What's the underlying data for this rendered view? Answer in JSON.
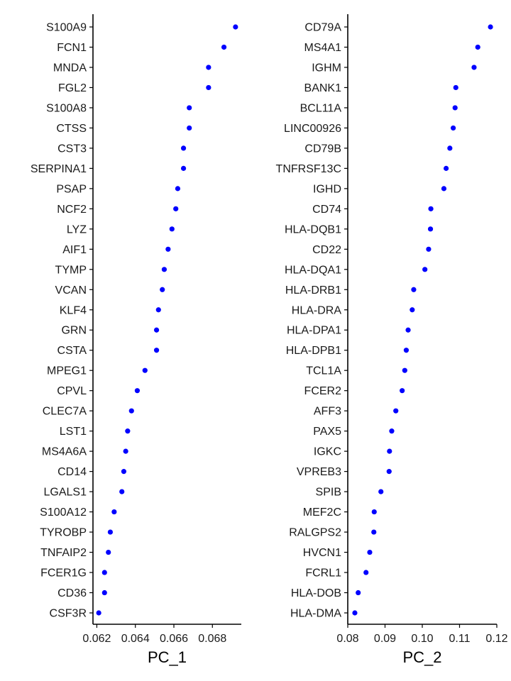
{
  "chart_data": [
    {
      "type": "scatter",
      "xlabel": "PC_1",
      "ylabel": "",
      "xlim": [
        0.0618,
        0.0695
      ],
      "xticks": [
        0.062,
        0.064,
        0.066,
        0.068
      ],
      "xtick_labels": [
        "0.062",
        "0.064",
        "0.066",
        "0.068"
      ],
      "point_color": "#0000ff",
      "grid": false,
      "genes": [
        "S100A9",
        "FCN1",
        "MNDA",
        "FGL2",
        "S100A8",
        "CTSS",
        "CST3",
        "SERPINA1",
        "PSAP",
        "NCF2",
        "LYZ",
        "AIF1",
        "TYMP",
        "VCAN",
        "KLF4",
        "GRN",
        "CSTA",
        "MPEG1",
        "CPVL",
        "CLEC7A",
        "LST1",
        "MS4A6A",
        "CD14",
        "LGALS1",
        "S100A12",
        "TYROBP",
        "TNFAIP2",
        "FCER1G",
        "CD36",
        "CSF3R"
      ],
      "values": [
        0.0692,
        0.0686,
        0.0678,
        0.0678,
        0.0668,
        0.0668,
        0.0665,
        0.0665,
        0.0662,
        0.0661,
        0.0659,
        0.0657,
        0.0655,
        0.0654,
        0.0652,
        0.0651,
        0.0651,
        0.0645,
        0.0641,
        0.0638,
        0.0636,
        0.0635,
        0.0634,
        0.0633,
        0.0629,
        0.0627,
        0.0626,
        0.0624,
        0.0624,
        0.0621
      ]
    },
    {
      "type": "scatter",
      "xlabel": "PC_2",
      "ylabel": "",
      "xlim": [
        0.08,
        0.12
      ],
      "xticks": [
        0.08,
        0.09,
        0.1,
        0.11,
        0.12
      ],
      "xtick_labels": [
        "0.08",
        "0.09",
        "0.10",
        "0.11",
        "0.12"
      ],
      "point_color": "#0000ff",
      "grid": false,
      "genes": [
        "CD79A",
        "MS4A1",
        "IGHM",
        "BANK1",
        "BCL11A",
        "LINC00926",
        "CD79B",
        "TNFRSF13C",
        "IGHD",
        "CD74",
        "HLA-DQB1",
        "CD22",
        "HLA-DQA1",
        "HLA-DRB1",
        "HLA-DRA",
        "HLA-DPA1",
        "HLA-DPB1",
        "TCL1A",
        "FCER2",
        "AFF3",
        "PAX5",
        "IGKC",
        "VPREB3",
        "SPIB",
        "MEF2C",
        "RALGPS2",
        "HVCN1",
        "FCRL1",
        "HLA-DOB",
        "HLA-DMA"
      ],
      "values": [
        0.1183,
        0.1149,
        0.1139,
        0.109,
        0.1088,
        0.1083,
        0.1074,
        0.1064,
        0.1058,
        0.1023,
        0.1022,
        0.1017,
        0.1007,
        0.0977,
        0.0973,
        0.0962,
        0.0957,
        0.0953,
        0.0946,
        0.0929,
        0.0918,
        0.0912,
        0.0911,
        0.0889,
        0.0871,
        0.087,
        0.0859,
        0.0849,
        0.0828,
        0.0819
      ]
    }
  ]
}
